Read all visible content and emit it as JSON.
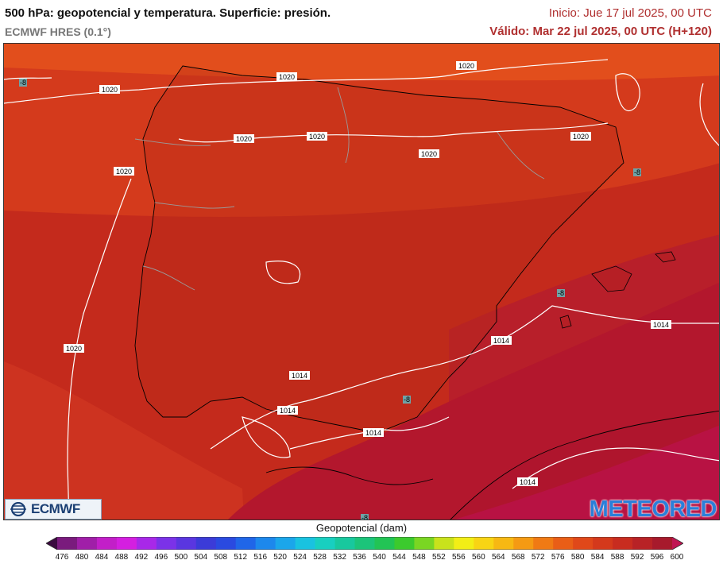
{
  "header": {
    "title": "500 hPa: geopotencial y temperatura. Superficie: presión.",
    "model": "ECMWF HRES (0.1°)",
    "init": "Inicio: Jue 17 jul 2025, 00 UTC",
    "valid": "Válido: Mar 22 jul 2025, 00 UTC (H+120)"
  },
  "map": {
    "isobar_labels": [
      "1020",
      "1020",
      "1020",
      "1020",
      "1020",
      "1020",
      "1020",
      "1020",
      "1020",
      "1014",
      "1014",
      "1014",
      "1014",
      "1014",
      "1014"
    ],
    "temp_labels": [
      "-8",
      "-8",
      "-8",
      "-8",
      "-8"
    ]
  },
  "logos": {
    "ecmwf": "ECMWF",
    "meteored": "METEORED"
  },
  "legend": {
    "title": "Geopotencial (dam)",
    "ticks": [
      "476",
      "480",
      "484",
      "488",
      "492",
      "496",
      "500",
      "504",
      "508",
      "512",
      "516",
      "520",
      "524",
      "528",
      "532",
      "536",
      "540",
      "544",
      "548",
      "552",
      "556",
      "560",
      "564",
      "568",
      "572",
      "576",
      "580",
      "584",
      "588",
      "592",
      "596",
      "600"
    ],
    "colors": [
      "#3a0a3f",
      "#7a1b7d",
      "#a01fa8",
      "#c21fc8",
      "#d41fe0",
      "#a828e8",
      "#7b32e8",
      "#5a36e0",
      "#3b3bd8",
      "#2a4ae0",
      "#2066e8",
      "#1d88ec",
      "#1ba6ea",
      "#19c2e0",
      "#18cfc0",
      "#18c89e",
      "#1cc47a",
      "#22c455",
      "#3cca2e",
      "#7ad623",
      "#c9e21c",
      "#f2ee16",
      "#f8d414",
      "#f7b813",
      "#f59a13",
      "#f07a14",
      "#e95e17",
      "#e0481a",
      "#d4391c",
      "#c82c20",
      "#b82226",
      "#a71a2c",
      "#c01452"
    ],
    "color_names": [
      "deep-purple",
      "purple",
      "magenta",
      "blue",
      "cyan",
      "green",
      "yellow",
      "orange",
      "red",
      "crimson"
    ]
  }
}
